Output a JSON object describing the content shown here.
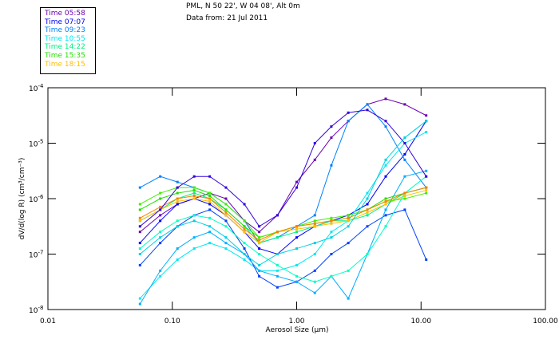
{
  "header": {
    "line1": "PML, N 50 22', W 04 08', Alt 0m",
    "line2": "Data from: 21 Jul 2011"
  },
  "legend": [
    {
      "label": "Time 05:58",
      "color": "#6a00b0"
    },
    {
      "label": "Time 07:07",
      "color": "#0000ff"
    },
    {
      "label": "Time 09:23",
      "color": "#0080ff"
    },
    {
      "label": "Time 10:55",
      "color": "#00e8f0"
    },
    {
      "label": "Time 14:22",
      "color": "#00f080"
    },
    {
      "label": "Time 15:35",
      "color": "#20e000"
    },
    {
      "label": "Time 18:15",
      "color": "#ffc000"
    }
  ],
  "chart_data": {
    "type": "line",
    "xscale": "log",
    "yscale": "log",
    "xlabel": "Aerosol Size (µm)",
    "ylabel": "dV/d(log R) (cm³/cm⁻³)",
    "xlim": [
      0.01,
      100
    ],
    "ylim": [
      1e-08,
      0.0001
    ],
    "xticks": [
      "0.01",
      "0.10",
      "1.00",
      "10.00",
      "100.00"
    ],
    "yticks": [
      {
        "base": "10",
        "exp": "-4"
      },
      {
        "base": "10",
        "exp": "-5"
      },
      {
        "base": "10",
        "exp": "-6"
      },
      {
        "base": "10",
        "exp": "-7"
      },
      {
        "base": "10",
        "exp": "-8"
      }
    ],
    "x": [
      0.055,
      0.08,
      0.11,
      0.15,
      0.2,
      0.27,
      0.38,
      0.5,
      0.7,
      1.0,
      1.4,
      1.9,
      2.6,
      3.7,
      5.2,
      7.4,
      11
    ],
    "series": [
      {
        "name": "Time 05:58",
        "color": "#6a00b0",
        "log10_values": [
          -6.6,
          -6.3,
          -6.1,
          -6.0,
          -5.9,
          -6.0,
          -6.4,
          -6.6,
          -6.3,
          -5.7,
          -5.3,
          -4.9,
          -4.6,
          -4.3,
          -4.2,
          -4.3,
          -4.5
        ]
      },
      {
        "name": "Time 07:07",
        "color": "#0000ff",
        "log10_values": [
          -6.8,
          -6.4,
          -6.1,
          -6.0,
          -6.1,
          -6.3,
          -6.6,
          -6.9,
          -7.0,
          -6.7,
          -6.5,
          -6.4,
          -6.3,
          -6.1,
          -5.6,
          -5.2,
          -4.6
        ]
      },
      {
        "name": "Time 09:23",
        "color": "#0080ff",
        "log10_values": [
          -5.8,
          -5.6,
          -5.7,
          -5.8,
          -5.9,
          -6.1,
          -6.4,
          -6.8,
          -6.7,
          -6.5,
          -6.3,
          -5.4,
          -4.6,
          -4.3,
          -4.7,
          -5.3,
          -5.8
        ]
      },
      {
        "name": "Time 10:55",
        "color": "#00e8f0",
        "log10_values": [
          -7.8,
          -7.4,
          -7.1,
          -6.9,
          -6.8,
          -6.9,
          -7.1,
          -7.3,
          -7.3,
          -7.2,
          -7.0,
          -6.6,
          -6.4,
          -5.9,
          -5.4,
          -5.0,
          -4.8
        ]
      },
      {
        "name": "Time 14:22",
        "color": "#00f080",
        "log10_values": [
          -6.4,
          -6.2,
          -6.0,
          -5.9,
          -6.0,
          -6.2,
          -6.5,
          -6.8,
          -6.7,
          -6.6,
          -6.5,
          -6.4,
          -6.4,
          -6.3,
          -6.1,
          -5.9,
          -5.8
        ]
      },
      {
        "name": "Time 15:35",
        "color": "#20e000",
        "log10_values": [
          -6.2,
          -6.0,
          -5.9,
          -5.85,
          -5.95,
          -6.2,
          -6.5,
          -6.7,
          -6.6,
          -6.5,
          -6.45,
          -6.4,
          -6.35,
          -6.2,
          -6.0,
          -5.9,
          -5.8
        ]
      },
      {
        "name": "Time 18:15",
        "color": "#ffc000",
        "log10_values": [
          -6.4,
          -6.2,
          -6.05,
          -6.0,
          -6.05,
          -6.3,
          -6.6,
          -6.8,
          -6.6,
          -6.55,
          -6.5,
          -6.45,
          -6.4,
          -6.25,
          -6.1,
          -5.95,
          -5.85
        ]
      },
      {
        "name": "",
        "color": "#0040ff",
        "log10_values": [
          -7.2,
          -6.8,
          -6.5,
          -6.3,
          -6.2,
          -6.4,
          -6.9,
          -7.4,
          -7.6,
          -7.5,
          -7.3,
          -7.0,
          -6.8,
          -6.5,
          -6.3,
          -6.2,
          -7.1
        ]
      },
      {
        "name": "",
        "color": "#00b0ff",
        "log10_values": [
          -7.9,
          -7.3,
          -6.9,
          -6.7,
          -6.6,
          -6.8,
          -7.0,
          -7.3,
          -7.4,
          -7.5,
          -7.7,
          -7.4,
          -7.8,
          -7.0,
          -6.2,
          -5.6,
          -5.5
        ]
      },
      {
        "name": "",
        "color": "#00ffc0",
        "log10_values": [
          -6.9,
          -6.6,
          -6.4,
          -6.3,
          -6.35,
          -6.5,
          -6.8,
          -7.0,
          -7.2,
          -7.4,
          -7.5,
          -7.4,
          -7.3,
          -7.0,
          -6.5,
          -5.9,
          -5.6
        ]
      },
      {
        "name": "",
        "color": "#40f000",
        "log10_values": [
          -6.1,
          -5.9,
          -5.8,
          -5.8,
          -5.9,
          -6.1,
          -6.4,
          -6.7,
          -6.6,
          -6.5,
          -6.4,
          -6.35,
          -6.3,
          -6.2,
          -6.05,
          -6.0,
          -5.9
        ]
      },
      {
        "name": "",
        "color": "#ff8000",
        "log10_values": [
          -6.35,
          -6.15,
          -6.0,
          -5.95,
          -6.0,
          -6.25,
          -6.55,
          -6.75,
          -6.6,
          -6.5,
          -6.45,
          -6.4,
          -6.35,
          -6.2,
          -6.05,
          -5.9,
          -5.8
        ]
      },
      {
        "name": "",
        "color": "#3000e0",
        "log10_values": [
          -6.5,
          -6.2,
          -5.8,
          -5.6,
          -5.6,
          -5.8,
          -6.1,
          -6.5,
          -6.3,
          -5.8,
          -5.0,
          -4.7,
          -4.45,
          -4.4,
          -4.6,
          -5.0,
          -5.6
        ]
      },
      {
        "name": "",
        "color": "#00d0e0",
        "log10_values": [
          -7.0,
          -6.7,
          -6.5,
          -6.4,
          -6.5,
          -6.7,
          -7.0,
          -7.2,
          -7.0,
          -6.9,
          -6.8,
          -6.7,
          -6.5,
          -6.0,
          -5.3,
          -4.9,
          -4.6
        ]
      }
    ]
  }
}
